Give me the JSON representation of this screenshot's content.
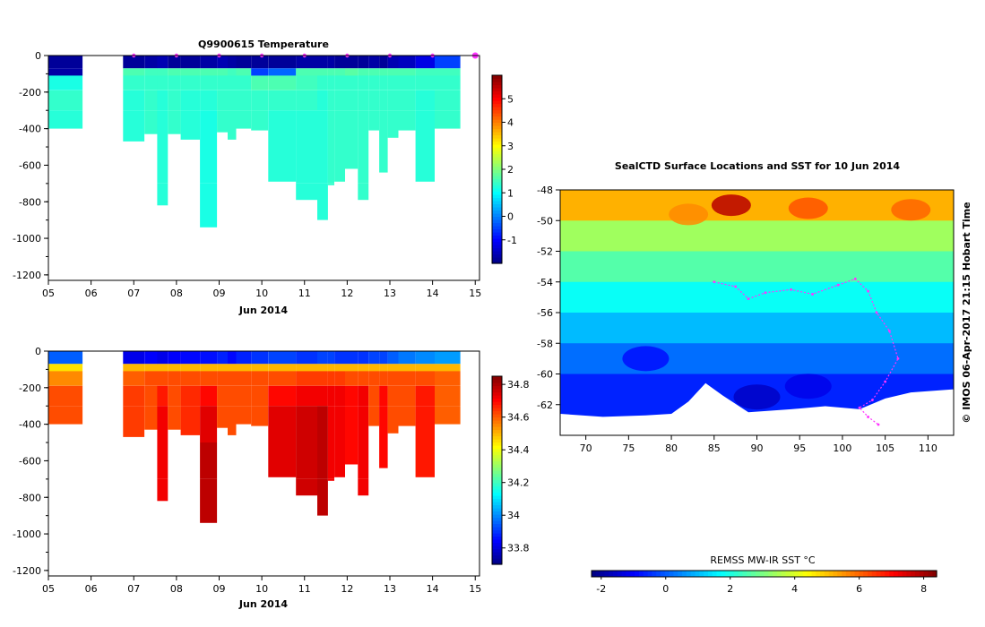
{
  "colors": {
    "missing": "#ffffff",
    "profile_marker": "#ff33ff",
    "jet": [
      "#00007f",
      "#0000ff",
      "#007fff",
      "#00ffff",
      "#7fff7f",
      "#ffff00",
      "#ff7f00",
      "#ff0000",
      "#7f0000"
    ],
    "temp_deep": "#1ec83c",
    "temp_upper": "#2fd23a",
    "temp_surface": "#0c1e9a",
    "sal_surface": "#2a9cf0",
    "sal_deep": "#b8280a",
    "sal_upper": "#f0a010"
  },
  "chart_data": [
    {
      "id": "temperature-section",
      "type": "heatmap",
      "title": "Q9900615  Temperature",
      "xlabel": "Jun 2014",
      "ylabel": "",
      "xlim": [
        5,
        15.1
      ],
      "ylim": [
        -1230,
        0
      ],
      "xticks": [
        "05",
        "06",
        "07",
        "08",
        "09",
        "10",
        "11",
        "12",
        "13",
        "14",
        "15"
      ],
      "yticks": [
        0,
        -200,
        -400,
        -600,
        -800,
        -1000,
        -1200
      ],
      "profile_times": [
        7.0,
        8.0,
        9.0,
        10.0,
        11.0,
        12.0,
        13.0,
        14.0,
        15.0
      ],
      "colorbar": {
        "min": -2,
        "max": 6,
        "ticks": [
          -1,
          0,
          1,
          2,
          3,
          4,
          5
        ]
      },
      "columns": [
        {
          "x0": 5.0,
          "x1": 5.8,
          "depth": 400,
          "v": [
            -1.8,
            -1.7,
            1.2,
            1.4,
            1.3
          ]
        },
        {
          "x0": 6.75,
          "x1": 7.25,
          "depth": 470,
          "v": [
            -1.8,
            1.6,
            1.4,
            1.3
          ]
        },
        {
          "x0": 7.25,
          "x1": 7.55,
          "depth": 430,
          "v": [
            -1.7,
            1.5,
            1.4
          ]
        },
        {
          "x0": 7.55,
          "x1": 7.8,
          "depth": 820,
          "v": [
            -1.6,
            1.5,
            1.4,
            1.3
          ]
        },
        {
          "x0": 7.8,
          "x1": 8.1,
          "depth": 430,
          "v": [
            -1.8,
            1.6,
            1.4
          ]
        },
        {
          "x0": 8.1,
          "x1": 8.55,
          "depth": 460,
          "v": [
            -1.8,
            1.6,
            1.4,
            1.3
          ]
        },
        {
          "x0": 8.55,
          "x1": 8.95,
          "depth": 940,
          "v": [
            -1.7,
            1.6,
            1.4,
            1.3,
            1.2
          ]
        },
        {
          "x0": 8.95,
          "x1": 9.2,
          "depth": 420,
          "v": [
            -1.6,
            1.6,
            1.4
          ]
        },
        {
          "x0": 9.2,
          "x1": 9.4,
          "depth": 460,
          "v": [
            -1.7,
            1.5,
            1.4
          ]
        },
        {
          "x0": 9.4,
          "x1": 9.75,
          "depth": 400,
          "v": [
            -1.8,
            1.6,
            1.4
          ]
        },
        {
          "x0": 9.75,
          "x1": 10.15,
          "depth": 410,
          "v": [
            -1.8,
            -0.5,
            1.6,
            1.4
          ]
        },
        {
          "x0": 10.15,
          "x1": 10.8,
          "depth": 690,
          "v": [
            -1.8,
            -0.2,
            1.6,
            1.4,
            1.3
          ]
        },
        {
          "x0": 10.8,
          "x1": 11.3,
          "depth": 790,
          "v": [
            -1.7,
            1.6,
            1.5,
            1.4,
            1.3
          ]
        },
        {
          "x0": 11.3,
          "x1": 11.55,
          "depth": 900,
          "v": [
            -1.7,
            1.6,
            1.4,
            1.3
          ]
        },
        {
          "x0": 11.55,
          "x1": 11.7,
          "depth": 710,
          "v": [
            -1.7,
            1.6,
            1.4
          ]
        },
        {
          "x0": 11.7,
          "x1": 11.95,
          "depth": 690,
          "v": [
            -1.8,
            1.6,
            1.4
          ]
        },
        {
          "x0": 11.95,
          "x1": 12.25,
          "depth": 620,
          "v": [
            -1.8,
            1.7,
            1.4
          ]
        },
        {
          "x0": 12.25,
          "x1": 12.5,
          "depth": 790,
          "v": [
            -1.8,
            1.6,
            1.4
          ]
        },
        {
          "x0": 12.5,
          "x1": 12.75,
          "depth": 410,
          "v": [
            -1.7,
            1.6,
            1.4
          ]
        },
        {
          "x0": 12.75,
          "x1": 12.95,
          "depth": 640,
          "v": [
            -1.8,
            1.6,
            1.4
          ]
        },
        {
          "x0": 12.95,
          "x1": 13.2,
          "depth": 450,
          "v": [
            -1.6,
            1.6,
            1.4
          ]
        },
        {
          "x0": 13.2,
          "x1": 13.6,
          "depth": 410,
          "v": [
            -1.5,
            1.6,
            1.4
          ]
        },
        {
          "x0": 13.6,
          "x1": 14.05,
          "depth": 690,
          "v": [
            -1.2,
            1.5,
            1.4,
            1.3
          ]
        },
        {
          "x0": 14.05,
          "x1": 14.65,
          "depth": 400,
          "v": [
            -0.5,
            1.5,
            1.4
          ]
        }
      ]
    },
    {
      "id": "salinity-section",
      "type": "heatmap",
      "title": "",
      "xlabel": "Jun 2014",
      "ylabel": "",
      "xlim": [
        5,
        15.1
      ],
      "ylim": [
        -1230,
        0
      ],
      "xticks": [
        "05",
        "06",
        "07",
        "08",
        "09",
        "10",
        "11",
        "12",
        "13",
        "14",
        "15"
      ],
      "yticks": [
        0,
        -200,
        -400,
        -600,
        -800,
        -1000,
        -1200
      ],
      "colorbar": {
        "min": 33.7,
        "max": 34.85,
        "ticks": [
          33.8,
          34,
          34.2,
          34.4,
          34.6,
          34.8
        ]
      },
      "columns": [
        {
          "x0": 5.0,
          "x1": 5.8,
          "depth": 400,
          "v": [
            33.95,
            34.45,
            34.55,
            34.62
          ]
        },
        {
          "x0": 6.75,
          "x1": 7.25,
          "depth": 470,
          "v": [
            33.82,
            34.5,
            34.6,
            34.64
          ]
        },
        {
          "x0": 7.25,
          "x1": 7.55,
          "depth": 430,
          "v": [
            33.84,
            34.5,
            34.62
          ]
        },
        {
          "x0": 7.55,
          "x1": 7.8,
          "depth": 820,
          "v": [
            33.82,
            34.5,
            34.62,
            34.68,
            34.72
          ]
        },
        {
          "x0": 7.8,
          "x1": 8.1,
          "depth": 430,
          "v": [
            33.84,
            34.5,
            34.62
          ]
        },
        {
          "x0": 8.1,
          "x1": 8.55,
          "depth": 460,
          "v": [
            33.85,
            34.5,
            34.62,
            34.66
          ]
        },
        {
          "x0": 8.55,
          "x1": 8.95,
          "depth": 940,
          "v": [
            33.86,
            34.5,
            34.62,
            34.7,
            34.74,
            34.78
          ]
        },
        {
          "x0": 8.95,
          "x1": 9.2,
          "depth": 420,
          "v": [
            33.88,
            34.5,
            34.62
          ]
        },
        {
          "x0": 9.2,
          "x1": 9.4,
          "depth": 460,
          "v": [
            33.85,
            34.5,
            34.62
          ]
        },
        {
          "x0": 9.4,
          "x1": 9.75,
          "depth": 400,
          "v": [
            33.88,
            34.5,
            34.62
          ]
        },
        {
          "x0": 9.75,
          "x1": 10.15,
          "depth": 410,
          "v": [
            33.9,
            34.5,
            34.62
          ]
        },
        {
          "x0": 10.15,
          "x1": 10.8,
          "depth": 690,
          "v": [
            33.92,
            34.5,
            34.62,
            34.7,
            34.74
          ]
        },
        {
          "x0": 10.8,
          "x1": 11.3,
          "depth": 790,
          "v": [
            33.9,
            34.5,
            34.64,
            34.72,
            34.76
          ]
        },
        {
          "x0": 11.3,
          "x1": 11.55,
          "depth": 900,
          "v": [
            33.92,
            34.5,
            34.64,
            34.72,
            34.78
          ]
        },
        {
          "x0": 11.55,
          "x1": 11.7,
          "depth": 710,
          "v": [
            33.92,
            34.5,
            34.64,
            34.72
          ]
        },
        {
          "x0": 11.7,
          "x1": 11.95,
          "depth": 690,
          "v": [
            33.9,
            34.5,
            34.64,
            34.72
          ]
        },
        {
          "x0": 11.95,
          "x1": 12.25,
          "depth": 620,
          "v": [
            33.9,
            34.5,
            34.62,
            34.7
          ]
        },
        {
          "x0": 12.25,
          "x1": 12.5,
          "depth": 790,
          "v": [
            33.9,
            34.5,
            34.62,
            34.72
          ]
        },
        {
          "x0": 12.5,
          "x1": 12.75,
          "depth": 410,
          "v": [
            33.92,
            34.5,
            34.62
          ]
        },
        {
          "x0": 12.75,
          "x1": 12.95,
          "depth": 640,
          "v": [
            33.92,
            34.5,
            34.62,
            34.7
          ]
        },
        {
          "x0": 12.95,
          "x1": 13.2,
          "depth": 450,
          "v": [
            33.95,
            34.5,
            34.62
          ]
        },
        {
          "x0": 13.2,
          "x1": 13.6,
          "depth": 410,
          "v": [
            33.98,
            34.5,
            34.62
          ]
        },
        {
          "x0": 13.6,
          "x1": 14.05,
          "depth": 690,
          "v": [
            34.0,
            34.5,
            34.62,
            34.68
          ]
        },
        {
          "x0": 14.05,
          "x1": 14.65,
          "depth": 400,
          "v": [
            34.02,
            34.5,
            34.6
          ]
        }
      ]
    },
    {
      "id": "sst-map",
      "type": "heatmap",
      "title": "SealCTD Surface Locations and SST for 10 Jun 2014",
      "xlabel": "",
      "ylabel": "",
      "xlim": [
        67,
        113
      ],
      "ylim": [
        -64,
        -48
      ],
      "xticks": [
        70,
        75,
        80,
        85,
        90,
        95,
        100,
        105,
        110
      ],
      "yticks": [
        -48,
        -50,
        -52,
        -54,
        -56,
        -58,
        -60,
        -62
      ],
      "credit": "© IMOS 06-Apr-2017 21:15 Hobart Time",
      "colorbar": {
        "label": "REMSS MW-IR SST °C",
        "min": -2.3,
        "max": 8.4,
        "ticks": [
          -2,
          0,
          2,
          4,
          6,
          8
        ]
      },
      "sst_bands": [
        {
          "lat_top": -48,
          "lat_bot": -50,
          "sst": 5.2
        },
        {
          "lat_top": -50,
          "lat_bot": -52,
          "sst": 3.4
        },
        {
          "lat_top": -52,
          "lat_bot": -54,
          "sst": 2.6
        },
        {
          "lat_top": -54,
          "lat_bot": -56,
          "sst": 1.8
        },
        {
          "lat_top": -56,
          "lat_bot": -58,
          "sst": 1.0
        },
        {
          "lat_top": -58,
          "lat_bot": -60,
          "sst": 0.2
        },
        {
          "lat_top": -60,
          "lat_bot": -64,
          "sst": -0.6
        }
      ],
      "warm_patches": [
        {
          "lon": 87,
          "lat": -49.0,
          "sst": 7.8
        },
        {
          "lon": 96,
          "lat": -49.2,
          "sst": 6.2
        },
        {
          "lon": 108,
          "lat": -49.3,
          "sst": 6.0
        },
        {
          "lon": 82,
          "lat": -49.6,
          "sst": 5.6
        }
      ],
      "cold_patches": [
        {
          "lon": 90,
          "lat": -61.5,
          "sst": -1.6
        },
        {
          "lon": 96,
          "lat": -60.8,
          "sst": -1.2
        },
        {
          "lon": 77,
          "lat": -59.0,
          "sst": -0.9
        }
      ],
      "ice_edge": [
        {
          "lon": 67,
          "lat": -62.6
        },
        {
          "lon": 72,
          "lat": -62.8
        },
        {
          "lon": 77,
          "lat": -62.7
        },
        {
          "lon": 80,
          "lat": -62.6
        },
        {
          "lon": 82,
          "lat": -61.8
        },
        {
          "lon": 84,
          "lat": -60.6
        },
        {
          "lon": 86,
          "lat": -61.4
        },
        {
          "lon": 89,
          "lat": -62.5
        },
        {
          "lon": 94,
          "lat": -62.3
        },
        {
          "lon": 98,
          "lat": -62.1
        },
        {
          "lon": 102,
          "lat": -62.3
        },
        {
          "lon": 105,
          "lat": -61.6
        },
        {
          "lon": 108,
          "lat": -61.2
        },
        {
          "lon": 113,
          "lat": -61.0
        }
      ],
      "seal_track": [
        {
          "lon": 85.0,
          "lat": -54.0
        },
        {
          "lon": 87.5,
          "lat": -54.3
        },
        {
          "lon": 89.0,
          "lat": -55.1
        },
        {
          "lon": 91.0,
          "lat": -54.7
        },
        {
          "lon": 94.0,
          "lat": -54.5
        },
        {
          "lon": 96.5,
          "lat": -54.8
        },
        {
          "lon": 99.5,
          "lat": -54.2
        },
        {
          "lon": 101.5,
          "lat": -53.8
        },
        {
          "lon": 103.0,
          "lat": -54.6
        },
        {
          "lon": 104.0,
          "lat": -56.0
        },
        {
          "lon": 105.5,
          "lat": -57.2
        },
        {
          "lon": 106.5,
          "lat": -59.0
        },
        {
          "lon": 105.0,
          "lat": -60.5
        },
        {
          "lon": 103.5,
          "lat": -61.7
        },
        {
          "lon": 102.0,
          "lat": -62.2
        },
        {
          "lon": 103.0,
          "lat": -62.8
        },
        {
          "lon": 104.2,
          "lat": -63.3
        }
      ]
    }
  ]
}
